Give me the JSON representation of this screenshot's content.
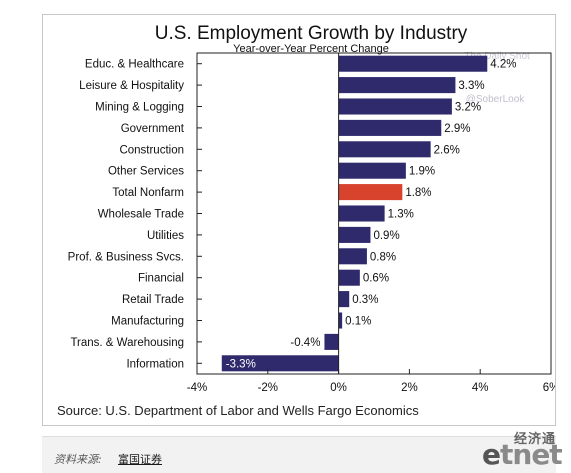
{
  "chart_data": {
    "type": "bar",
    "orientation": "horizontal",
    "title": "U.S. Employment Growth by Industry",
    "subtitle": "Year-over-Year Percent Change",
    "categories": [
      "Educ. & Healthcare",
      "Leisure & Hospitality",
      "Mining & Logging",
      "Government",
      "Construction",
      "Other Services",
      "Total Nonfarm",
      "Wholesale Trade",
      "Utilities",
      "Prof. & Business Svcs.",
      "Financial",
      "Retail Trade",
      "Manufacturing",
      "Trans. & Warehousing",
      "Information"
    ],
    "values": [
      4.2,
      3.3,
      3.2,
      2.9,
      2.6,
      1.9,
      1.8,
      1.3,
      0.9,
      0.8,
      0.6,
      0.3,
      0.1,
      -0.4,
      -3.3
    ],
    "data_labels": [
      "4.2%",
      "3.3%",
      "3.2%",
      "2.9%",
      "2.6%",
      "1.9%",
      "1.8%",
      "1.3%",
      "0.9%",
      "0.8%",
      "0.6%",
      "0.3%",
      "0.1%",
      "-0.4%",
      "-3.3%"
    ],
    "highlight_category": "Total Nonfarm",
    "xlim": [
      -4,
      6
    ],
    "xticks": [
      -4,
      -2,
      0,
      2,
      4,
      6
    ],
    "xtick_labels": [
      "-4%",
      "-2%",
      "0%",
      "2%",
      "4%",
      "6%"
    ],
    "grid": false,
    "colors": {
      "bar": "#2e2a6b",
      "highlight": "#d8432e",
      "axis": "#222222"
    },
    "source": "Source: U.S. Department of Labor and Wells Fargo Economics",
    "watermarks": [
      "The Daily Shot",
      "@SoberLook"
    ]
  },
  "caption": {
    "label": "资料来源:",
    "link": "富国证券"
  },
  "brand": {
    "cn": "经济通",
    "logo_e": "e",
    "logo_tnet": "tnet"
  }
}
